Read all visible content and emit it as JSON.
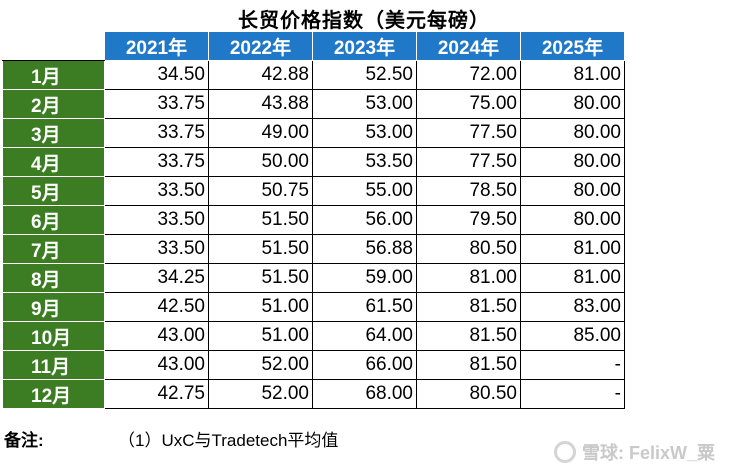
{
  "title": "长贸价格指数（美元每磅）",
  "columns": [
    "2021年",
    "2022年",
    "2023年",
    "2024年",
    "2025年"
  ],
  "rows": [
    {
      "month": "1月",
      "values": [
        "34.50",
        "42.88",
        "52.50",
        "72.00",
        "81.00"
      ]
    },
    {
      "month": "2月",
      "values": [
        "33.75",
        "43.88",
        "53.00",
        "75.00",
        "80.00"
      ]
    },
    {
      "month": "3月",
      "values": [
        "33.75",
        "49.00",
        "53.00",
        "77.50",
        "80.00"
      ]
    },
    {
      "month": "4月",
      "values": [
        "33.75",
        "50.00",
        "53.50",
        "77.50",
        "80.00"
      ]
    },
    {
      "month": "5月",
      "values": [
        "33.50",
        "50.75",
        "55.00",
        "78.50",
        "80.00"
      ]
    },
    {
      "month": "6月",
      "values": [
        "33.50",
        "51.50",
        "56.00",
        "79.50",
        "80.00"
      ]
    },
    {
      "month": "7月",
      "values": [
        "33.50",
        "51.50",
        "56.88",
        "80.50",
        "81.00"
      ]
    },
    {
      "month": "8月",
      "values": [
        "34.25",
        "51.50",
        "59.00",
        "81.00",
        "81.00"
      ]
    },
    {
      "month": "9月",
      "values": [
        "42.50",
        "51.00",
        "61.50",
        "81.50",
        "83.00"
      ]
    },
    {
      "month": "10月",
      "values": [
        "43.00",
        "51.00",
        "64.00",
        "81.50",
        "85.00"
      ]
    },
    {
      "month": "11月",
      "values": [
        "43.00",
        "52.00",
        "66.00",
        "81.50",
        "-"
      ]
    },
    {
      "month": "12月",
      "values": [
        "42.75",
        "52.00",
        "68.00",
        "80.50",
        "-"
      ]
    }
  ],
  "note": {
    "label": "备注:",
    "text": "（1）UxC与Tradetech平均值"
  },
  "watermark": "雪球: FelixW_粟",
  "colors": {
    "header_bg": "#1f78c8",
    "month_bg": "#3c7d23"
  }
}
